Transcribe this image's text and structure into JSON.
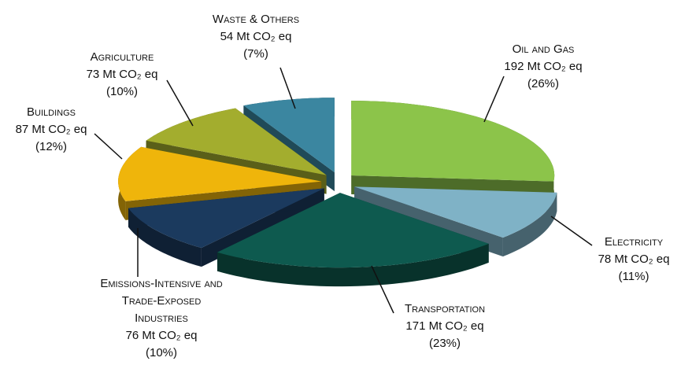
{
  "chart_data": {
    "type": "pie",
    "categories": [
      "Oil and Gas",
      "Electricity",
      "Transportation",
      "Emissions-Intensive and Trade-Exposed Industries",
      "Buildings",
      "Agriculture",
      "Waste & Others"
    ],
    "values": [
      192,
      78,
      171,
      76,
      87,
      73,
      54
    ],
    "value_labels": [
      "192 Mt CO₂ eq",
      "78 Mt CO₂ eq",
      "171 Mt CO₂ eq",
      "76 Mt CO₂ eq",
      "87 Mt CO₂ eq",
      "73 Mt CO₂ eq",
      "54 Mt CO₂ eq"
    ],
    "percentages": [
      26,
      11,
      23,
      10,
      12,
      10,
      7
    ],
    "percentage_labels": [
      "(26%)",
      "(11%)",
      "(23%)",
      "(10%)",
      "(12%)",
      "(10%)",
      "(7%)"
    ],
    "colors": [
      "#8cc44a",
      "#7fb2c6",
      "#0e5a4f",
      "#1b3a5e",
      "#efb50b",
      "#a3ad2e",
      "#3b86a0"
    ]
  }
}
